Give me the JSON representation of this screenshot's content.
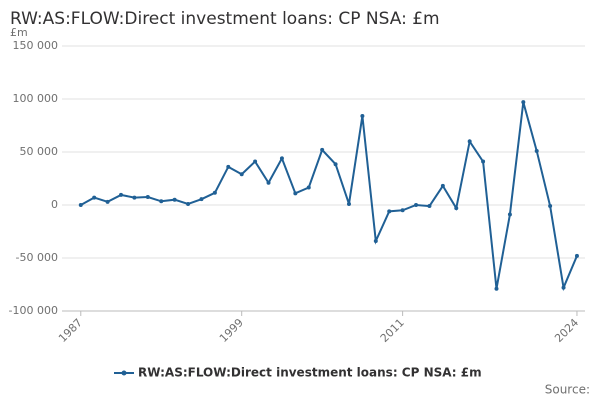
{
  "chart_data": {
    "type": "line",
    "title": "RW:AS:FLOW:Direct investment loans: CP NSA: £m",
    "y_label": "£m",
    "source": "Source:",
    "x": [
      1987,
      1988,
      1989,
      1990,
      1991,
      1992,
      1993,
      1994,
      1995,
      1996,
      1997,
      1998,
      1999,
      2000,
      2001,
      2002,
      2003,
      2004,
      2005,
      2006,
      2007,
      2008,
      2009,
      2010,
      2011,
      2012,
      2013,
      2014,
      2015,
      2016,
      2017,
      2018,
      2019,
      2020,
      2021,
      2022,
      2023,
      2024
    ],
    "series": [
      {
        "name": "RW:AS:FLOW:Direct investment loans: CP NSA: £m",
        "color": "#206095",
        "values": [
          0,
          7000,
          3000,
          9500,
          7000,
          7500,
          3500,
          5000,
          1000,
          5500,
          11500,
          36000,
          29000,
          41000,
          21000,
          44000,
          11000,
          16500,
          52000,
          38500,
          1000,
          84000,
          -34000,
          -6000,
          -5000,
          0,
          -1000,
          18000,
          -3000,
          60000,
          41000,
          -79000,
          -9000,
          97000,
          51000,
          -1000,
          -78000,
          -48000
        ]
      }
    ],
    "xlim": [
      1985.6,
      2024.6
    ],
    "xticks": [
      1987,
      1999,
      2011,
      2024
    ],
    "ylim": [
      -100000,
      150000
    ],
    "yticks": [
      {
        "value": -100000,
        "label": "-100 000"
      },
      {
        "value": -50000,
        "label": "-50 000"
      },
      0,
      {
        "value": 50000,
        "label": "50 000"
      },
      {
        "value": 100000,
        "label": "100 000"
      },
      {
        "value": 150000,
        "label": "150 000"
      }
    ],
    "grid": true
  }
}
